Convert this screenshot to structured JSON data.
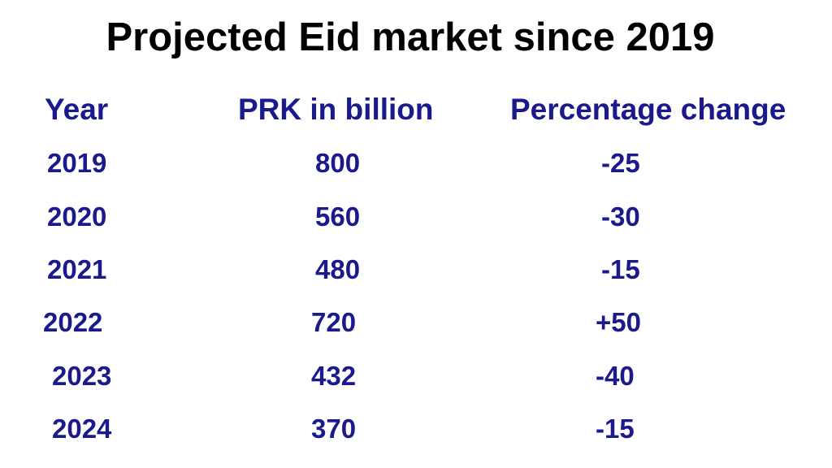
{
  "chart_data": {
    "type": "table",
    "title": "Projected Eid market since 2019",
    "columns": [
      "Year",
      "PRK in billion",
      "Percentage change"
    ],
    "rows": [
      [
        "2019",
        "800",
        "-25"
      ],
      [
        "2020",
        "560",
        "-30"
      ],
      [
        "2021",
        "480",
        "-15"
      ],
      [
        "2022",
        "720",
        "+50"
      ],
      [
        "2023",
        "432",
        "-40"
      ],
      [
        "2024",
        "370",
        "-15"
      ]
    ]
  },
  "colors": {
    "title": "#000000",
    "text": "#1a1a8c",
    "background": "#ffffff"
  }
}
